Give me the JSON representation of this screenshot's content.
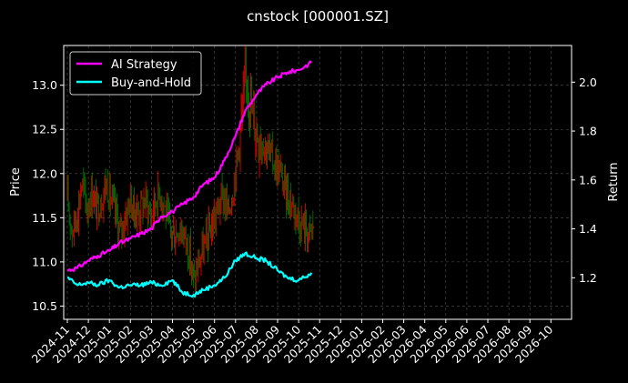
{
  "chart_data": {
    "type": "line",
    "title": "cnstock [000001.SZ]",
    "ylabel_left": "Price",
    "ylabel_right": "Return",
    "grid": true,
    "legend_placement": "top-left",
    "x_ticks": [
      "2024-11",
      "2024-12",
      "2025-01",
      "2025-02",
      "2025-03",
      "2025-04",
      "2025-05",
      "2025-06",
      "2025-07",
      "2025-08",
      "2025-09",
      "2025-10",
      "2025-11",
      "2025-12",
      "2026-01",
      "2026-02",
      "2026-03",
      "2026-04",
      "2026-05",
      "2026-06",
      "2026-07",
      "2026-08",
      "2026-09",
      "2026-10"
    ],
    "left_axis": {
      "ylim": [
        10.35,
        13.45
      ],
      "ticks": [
        "10.5",
        "11.0",
        "11.5",
        "12.0",
        "12.5",
        "13.0"
      ]
    },
    "right_axis": {
      "ylim": [
        1.03,
        2.15
      ],
      "ticks": [
        "1.2",
        "1.4",
        "1.6",
        "1.8",
        "2.0"
      ]
    },
    "candles": {
      "up_color": "#ff0000",
      "down_color": "#008000",
      "price_path": [
        [
          "2024-11-01",
          11.7
        ],
        [
          "2024-11-08",
          11.35
        ],
        [
          "2024-11-15",
          11.55
        ],
        [
          "2024-11-22",
          11.9
        ],
        [
          "2024-11-29",
          11.6
        ],
        [
          "2024-12-06",
          11.8
        ],
        [
          "2024-12-13",
          11.6
        ],
        [
          "2024-12-20",
          11.7
        ],
        [
          "2024-12-27",
          11.9
        ],
        [
          "2025-01-03",
          11.7
        ],
        [
          "2025-01-10",
          11.55
        ],
        [
          "2025-01-17",
          11.3
        ],
        [
          "2025-01-24",
          11.5
        ],
        [
          "2025-01-31",
          11.7
        ],
        [
          "2025-02-07",
          11.55
        ],
        [
          "2025-02-14",
          11.6
        ],
        [
          "2025-02-21",
          11.7
        ],
        [
          "2025-02-28",
          11.5
        ],
        [
          "2025-03-07",
          11.7
        ],
        [
          "2025-03-14",
          11.8
        ],
        [
          "2025-03-21",
          11.6
        ],
        [
          "2025-03-28",
          11.35
        ],
        [
          "2025-04-04",
          11.3
        ],
        [
          "2025-04-11",
          11.4
        ],
        [
          "2025-04-18",
          11.3
        ],
        [
          "2025-04-25",
          11.1
        ],
        [
          "2025-05-02",
          10.75
        ],
        [
          "2025-05-09",
          11.0
        ],
        [
          "2025-05-16",
          11.15
        ],
        [
          "2025-05-23",
          11.3
        ],
        [
          "2025-05-30",
          11.45
        ],
        [
          "2025-06-06",
          11.6
        ],
        [
          "2025-06-13",
          11.75
        ],
        [
          "2025-06-20",
          11.55
        ],
        [
          "2025-06-27",
          11.8
        ],
        [
          "2025-07-04",
          12.2
        ],
        [
          "2025-07-11",
          12.7
        ],
        [
          "2025-07-18",
          13.1
        ],
        [
          "2025-07-25",
          12.7
        ],
        [
          "2025-08-01",
          12.5
        ],
        [
          "2025-08-08",
          12.4
        ],
        [
          "2025-08-15",
          12.3
        ],
        [
          "2025-08-22",
          12.2
        ],
        [
          "2025-08-29",
          12.1
        ],
        [
          "2025-09-05",
          12.0
        ],
        [
          "2025-09-12",
          11.8
        ],
        [
          "2025-09-19",
          11.7
        ],
        [
          "2025-09-26",
          11.6
        ],
        [
          "2025-10-03",
          11.45
        ],
        [
          "2025-10-10",
          11.4
        ],
        [
          "2025-10-17",
          11.3
        ],
        [
          "2025-10-24",
          11.45
        ]
      ]
    },
    "series": [
      {
        "name": "AI Strategy",
        "color": "#ff00ff",
        "axis": "right",
        "points": [
          [
            "2024-11-01",
            1.23
          ],
          [
            "2024-11-15",
            1.24
          ],
          [
            "2024-12-01",
            1.27
          ],
          [
            "2024-12-15",
            1.29
          ],
          [
            "2025-01-01",
            1.31
          ],
          [
            "2025-01-15",
            1.34
          ],
          [
            "2025-02-01",
            1.36
          ],
          [
            "2025-02-15",
            1.38
          ],
          [
            "2025-03-01",
            1.4
          ],
          [
            "2025-03-15",
            1.45
          ],
          [
            "2025-04-01",
            1.47
          ],
          [
            "2025-04-15",
            1.5
          ],
          [
            "2025-05-01",
            1.53
          ],
          [
            "2025-05-15",
            1.58
          ],
          [
            "2025-06-01",
            1.61
          ],
          [
            "2025-06-15",
            1.68
          ],
          [
            "2025-07-01",
            1.78
          ],
          [
            "2025-07-15",
            1.88
          ],
          [
            "2025-08-01",
            1.95
          ],
          [
            "2025-08-15",
            1.99
          ],
          [
            "2025-09-01",
            2.02
          ],
          [
            "2025-09-15",
            2.04
          ],
          [
            "2025-10-01",
            2.05
          ],
          [
            "2025-10-20",
            2.08
          ]
        ]
      },
      {
        "name": "Buy-and-Hold",
        "color": "#00ffff",
        "axis": "right",
        "points": [
          [
            "2024-11-01",
            1.2
          ],
          [
            "2024-11-15",
            1.17
          ],
          [
            "2024-12-01",
            1.18
          ],
          [
            "2024-12-15",
            1.17
          ],
          [
            "2025-01-01",
            1.19
          ],
          [
            "2025-01-15",
            1.16
          ],
          [
            "2025-02-01",
            1.17
          ],
          [
            "2025-02-15",
            1.17
          ],
          [
            "2025-03-01",
            1.18
          ],
          [
            "2025-03-15",
            1.17
          ],
          [
            "2025-04-01",
            1.19
          ],
          [
            "2025-04-15",
            1.14
          ],
          [
            "2025-05-01",
            1.13
          ],
          [
            "2025-05-15",
            1.15
          ],
          [
            "2025-06-01",
            1.17
          ],
          [
            "2025-06-15",
            1.2
          ],
          [
            "2025-07-01",
            1.27
          ],
          [
            "2025-07-15",
            1.3
          ],
          [
            "2025-08-01",
            1.28
          ],
          [
            "2025-08-15",
            1.27
          ],
          [
            "2025-09-01",
            1.23
          ],
          [
            "2025-09-15",
            1.2
          ],
          [
            "2025-10-01",
            1.19
          ],
          [
            "2025-10-20",
            1.22
          ]
        ]
      }
    ]
  }
}
